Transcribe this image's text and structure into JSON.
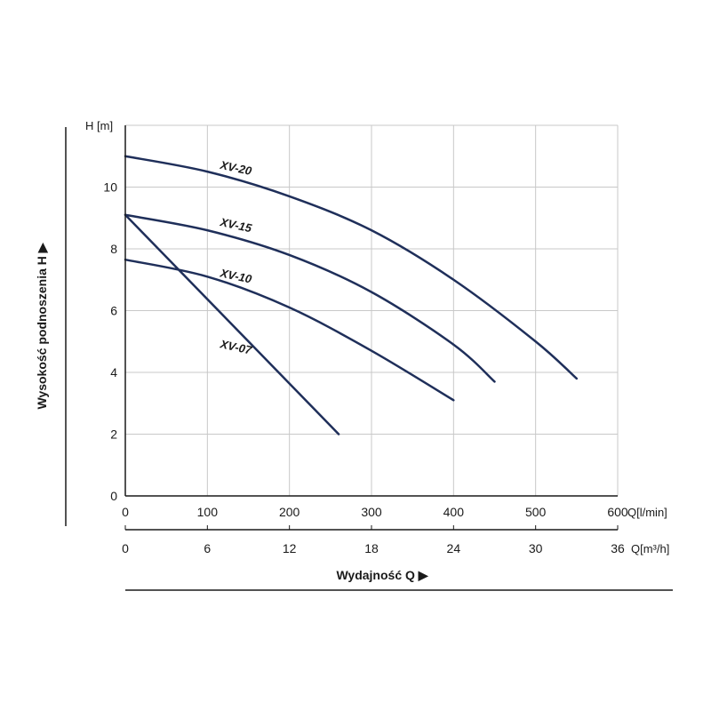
{
  "colors": {
    "curve": "#1f2f5a",
    "grid": "#c8c8c8",
    "axis": "#1a1a1a",
    "frame": "#1a1a1a"
  },
  "chart_data": {
    "type": "line",
    "ylabel": "Wysokość podnoszenia H ▶",
    "xlabel": "Wydajność Q ▶",
    "y_unit": "H [m]",
    "x_unit": "Q[l/min]",
    "x2_unit": "Q[m³/h]",
    "xlim": [
      0,
      600
    ],
    "ylim": [
      0,
      12
    ],
    "x_ticks": [
      0,
      100,
      200,
      300,
      400,
      500,
      600
    ],
    "x2_ticks": [
      0,
      6,
      12,
      18,
      24,
      30,
      36
    ],
    "y_ticks": [
      0,
      2,
      4,
      6,
      8,
      10
    ],
    "grid": true,
    "series": [
      {
        "name": "XV-20",
        "x": [
          0,
          100,
          200,
          300,
          400,
          500,
          550
        ],
        "y": [
          11.0,
          10.5,
          9.7,
          8.6,
          7.0,
          5.0,
          3.8
        ]
      },
      {
        "name": "XV-15",
        "x": [
          0,
          100,
          200,
          300,
          400,
          450
        ],
        "y": [
          9.1,
          8.6,
          7.8,
          6.6,
          4.9,
          3.7
        ]
      },
      {
        "name": "XV-10",
        "x": [
          0,
          100,
          200,
          300,
          400
        ],
        "y": [
          7.65,
          7.1,
          6.1,
          4.7,
          3.1
        ]
      },
      {
        "name": "XV-07",
        "x": [
          0,
          260
        ],
        "y": [
          9.1,
          2.0
        ]
      }
    ],
    "series_label_anchor": [
      {
        "x": 115,
        "y": 10.6
      },
      {
        "x": 115,
        "y": 8.75
      },
      {
        "x": 115,
        "y": 7.1
      },
      {
        "x": 115,
        "y": 4.8
      }
    ]
  }
}
